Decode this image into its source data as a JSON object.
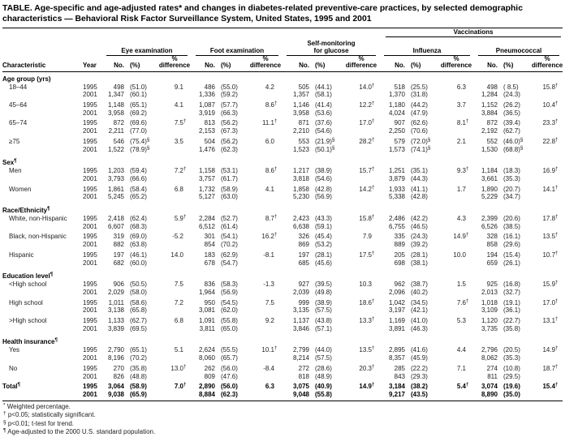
{
  "title": "TABLE. Age-specific and age-adjusted rates* and changes in diabetes-related preventive-care practices, by selected demographic characteristics — Behavioral Risk Factor Surveillance System, United States, 1995 and 2001",
  "years": [
    "1995",
    "2001"
  ],
  "header": {
    "vaccinations": "Vaccinations",
    "characteristic": "Characteristic",
    "year": "Year",
    "group_eye": "Eye examination",
    "group_foot": "Foot examination",
    "group_self_1": "Self-monitoring",
    "group_self_2": "for glucose",
    "group_flu": "Influenza",
    "group_pneumo": "Pneumococcal",
    "sub": {
      "no": "No.",
      "pct": "(%)",
      "diff_top": "%",
      "diff_bottom": "difference"
    }
  },
  "sections": [
    {
      "label": "Age group (yrs)",
      "sup": "",
      "rows": [
        {
          "label": "18–44",
          "y1995": [
            "498",
            "(51.0)",
            "9.1",
            "486",
            "(55.0)",
            "4.2",
            "505",
            "(44.1)",
            "14.0†",
            "518",
            "(25.5)",
            "6.3",
            "498",
            "( 8.5)",
            "15.8†"
          ],
          "y2001": [
            "1,347",
            "(60.1)",
            "",
            "1,336",
            "(59.2)",
            "",
            "1,357",
            "(58.1)",
            "",
            "1,370",
            "(31.8)",
            "",
            "1,284",
            "(24.3)",
            ""
          ]
        },
        {
          "label": "45–64",
          "y1995": [
            "1,148",
            "(65.1)",
            "4.1",
            "1,087",
            "(57.7)",
            "8.6†",
            "1,146",
            "(41.4)",
            "12.2†",
            "1,180",
            "(44.2)",
            "3.7",
            "1,152",
            "(26.2)",
            "10.4†"
          ],
          "y2001": [
            "3,958",
            "(69.2)",
            "",
            "3,919",
            "(66.3)",
            "",
            "3,958",
            "(53.6)",
            "",
            "4,024",
            "(47.9)",
            "",
            "3,884",
            "(36.5)",
            ""
          ]
        },
        {
          "label": "65–74",
          "y1995": [
            "872",
            "(69.6)",
            "7.5†",
            "813",
            "(56.2)",
            "11.1†",
            "871",
            "(37.6)",
            "17.0†",
            "907",
            "(62.6)",
            "8.1†",
            "872",
            "(39.4)",
            "23.3†"
          ],
          "y2001": [
            "2,211",
            "(77.0)",
            "",
            "2,153",
            "(67.3)",
            "",
            "2,210",
            "(54.6)",
            "",
            "2,250",
            "(70.6)",
            "",
            "2,192",
            "(62.7)",
            ""
          ]
        },
        {
          "label": "≥75",
          "y1995": [
            "546",
            "(75.4)§",
            "3.5",
            "504",
            "(56.2)",
            "6.0",
            "553",
            "(21.9)§",
            "28.2†",
            "579",
            "(72.0)§",
            "2.1",
            "552",
            "(46.0)§",
            "22.8†"
          ],
          "y2001": [
            "1,522",
            "(78.9)§",
            "",
            "1,476",
            "(62.3)",
            "",
            "1,523",
            "(50.1)§",
            "",
            "1,573",
            "(74.1)§",
            "",
            "1,530",
            "(68.8)§",
            ""
          ]
        }
      ]
    },
    {
      "label": "Sex",
      "sup": "¶",
      "rows": [
        {
          "label": "Men",
          "y1995": [
            "1,203",
            "(59.4)",
            "7.2†",
            "1,158",
            "(53.1)",
            "8.6†",
            "1,217",
            "(38.9)",
            "15.7†",
            "1,251",
            "(35.1)",
            "9.3†",
            "1,184",
            "(18.3)",
            "16.9†"
          ],
          "y2001": [
            "3,793",
            "(66.6)",
            "",
            "3,757",
            "(61.7)",
            "",
            "3,818",
            "(54.6)",
            "",
            "3,879",
            "(44.3)",
            "",
            "3,661",
            "(35.3)",
            ""
          ]
        },
        {
          "label": "Women",
          "y1995": [
            "1,861",
            "(58.4)",
            "6.8",
            "1,732",
            "(58.9)",
            "4.1",
            "1,858",
            "(42.8)",
            "14.2†",
            "1,933",
            "(41.1)",
            "1.7",
            "1,890",
            "(20.7)",
            "14.1†"
          ],
          "y2001": [
            "5,245",
            "(65.2)",
            "",
            "5,127",
            "(63.0)",
            "",
            "5,230",
            "(56.9)",
            "",
            "5,338",
            "(42.8)",
            "",
            "5,229",
            "(34.7)",
            ""
          ]
        }
      ]
    },
    {
      "label": "Race/Ethnicity",
      "sup": "¶",
      "rows": [
        {
          "label": "White, non-Hispanic",
          "y1995": [
            "2,418",
            "(62.4)",
            "5.9†",
            "2,284",
            "(52.7)",
            "8.7†",
            "2,423",
            "(43.3)",
            "15.8†",
            "2,486",
            "(42.2)",
            "4.3",
            "2,399",
            "(20.6)",
            "17.8†"
          ],
          "y2001": [
            "6,607",
            "(68.3)",
            "",
            "6,512",
            "(61.4)",
            "",
            "6,638",
            "(59.1)",
            "",
            "6,755",
            "(46.5)",
            "",
            "6,526",
            "(38.5)",
            ""
          ]
        },
        {
          "label": "Black, non-Hispanic",
          "y1995": [
            "319",
            "(69.0)",
            "-5.2",
            "301",
            "(54.1)",
            "16.2†",
            "326",
            "(45.4)",
            "7.9",
            "335",
            "(24.3)",
            "14.9†",
            "328",
            "(16.1)",
            "13.5†"
          ],
          "y2001": [
            "882",
            "(63.8)",
            "",
            "854",
            "(70.2)",
            "",
            "869",
            "(53.2)",
            "",
            "889",
            "(39.2)",
            "",
            "858",
            "(29.6)",
            ""
          ]
        },
        {
          "label": "Hispanic",
          "y1995": [
            "197",
            "(46.1)",
            "14.0",
            "183",
            "(62.9)",
            "-8.1",
            "197",
            "(28.1)",
            "17.5†",
            "205",
            "(28.1)",
            "10.0",
            "194",
            "(15.4)",
            "10.7†"
          ],
          "y2001": [
            "682",
            "(60.0)",
            "",
            "678",
            "(54.7)",
            "",
            "685",
            "(45.6)",
            "",
            "698",
            "(38.1)",
            "",
            "659",
            "(26.1)",
            ""
          ]
        }
      ]
    },
    {
      "label": "Education level",
      "sup": "¶",
      "rows": [
        {
          "label": "<High school",
          "y1995": [
            "906",
            "(50.5)",
            "7.5",
            "836",
            "(58.3)",
            "-1.3",
            "927",
            "(39.5)",
            "10.3",
            "962",
            "(38.7)",
            "1.5",
            "925",
            "(16.8)",
            "15.9†"
          ],
          "y2001": [
            "2,029",
            "(58.0)",
            "",
            "1,964",
            "(56.9)",
            "",
            "2,039",
            "(49.8)",
            "",
            "2,096",
            "(40.2)",
            "",
            "2,013",
            "(32.7)",
            ""
          ]
        },
        {
          "label": "High school",
          "y1995": [
            "1,011",
            "(58.6)",
            "7.2",
            "950",
            "(54.5)",
            "7.5",
            "999",
            "(38.9)",
            "18.6†",
            "1,042",
            "(34.5)",
            "7.6†",
            "1,018",
            "(19.1)",
            "17.0†"
          ],
          "y2001": [
            "3,138",
            "(65.8)",
            "",
            "3,081",
            "(62.0)",
            "",
            "3,135",
            "(57.5)",
            "",
            "3,197",
            "(42.1)",
            "",
            "3,109",
            "(36.1)",
            ""
          ]
        },
        {
          "label": ">High school",
          "y1995": [
            "1,133",
            "(62.7)",
            "6.8",
            "1,091",
            "(55.8)",
            "9.2",
            "1,137",
            "(43.8)",
            "13.3†",
            "1,169",
            "(41.0)",
            "5.3",
            "1,120",
            "(22.7)",
            "13.1†"
          ],
          "y2001": [
            "3,839",
            "(69.5)",
            "",
            "3,811",
            "(65.0)",
            "",
            "3,846",
            "(57.1)",
            "",
            "3,891",
            "(46.3)",
            "",
            "3,735",
            "(35.8)",
            ""
          ]
        }
      ]
    },
    {
      "label": "Health insurance",
      "sup": "¶",
      "rows": [
        {
          "label": "Yes",
          "y1995": [
            "2,790",
            "(65.1)",
            "5.1",
            "2,624",
            "(55.5)",
            "10.1†",
            "2,799",
            "(44.0)",
            "13.5†",
            "2,895",
            "(41.6)",
            "4.4",
            "2,796",
            "(20.5)",
            "14.9†"
          ],
          "y2001": [
            "8,196",
            "(70.2)",
            "",
            "8,060",
            "(65.7)",
            "",
            "8,214",
            "(57.5)",
            "",
            "8,357",
            "(45.9)",
            "",
            "8,062",
            "(35.3)",
            ""
          ]
        },
        {
          "label": "No",
          "y1995": [
            "270",
            "(35.8)",
            "13.0†",
            "262",
            "(56.0)",
            "-8.4",
            "272",
            "(28.6)",
            "20.3†",
            "285",
            "(22.2)",
            "7.1",
            "274",
            "(10.8)",
            "18.7†"
          ],
          "y2001": [
            "826",
            "(48.8)",
            "",
            "809",
            "(47.6)",
            "",
            "818",
            "(48.9)",
            "",
            "843",
            "(29.3)",
            "",
            "811",
            "(29.5)",
            ""
          ]
        }
      ]
    },
    {
      "label": "Total",
      "sup": "¶",
      "inline": true,
      "bold": true,
      "rows": [
        {
          "label": "Total",
          "sup": "¶",
          "y1995": [
            "3,064",
            "(58.9)",
            "7.0†",
            "2,890",
            "(56.0)",
            "6.3",
            "3,075",
            "(40.9)",
            "14.9†",
            "3,184",
            "(38.2)",
            "5.4†",
            "3,074",
            "(19.6)",
            "15.4†"
          ],
          "y2001": [
            "9,038",
            "(65.9)",
            "",
            "8,884",
            "(62.3)",
            "",
            "9,048",
            "(55.8)",
            "",
            "9,217",
            "(43.5)",
            "",
            "8,890",
            "(35.0)",
            ""
          ]
        }
      ]
    }
  ],
  "footnotes": [
    {
      "sym": "*",
      "text": "Weighted percentage."
    },
    {
      "sym": "†",
      "text": "p<0.05; statistically significant."
    },
    {
      "sym": "§",
      "text": "p<0.01; t-test for trend."
    },
    {
      "sym": "¶",
      "text": "Age-adjusted to the 2000 U.S. standard population."
    }
  ]
}
